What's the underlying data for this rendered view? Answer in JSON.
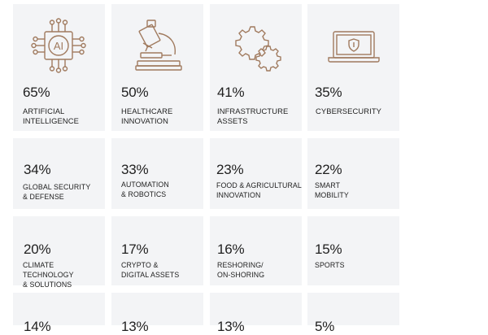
{
  "icon_color": "#a07a5e",
  "cards": [
    {
      "value": "65%",
      "label": "ARTIFICIAL\nINTELLIGENCE",
      "icon": "ai-chip-icon"
    },
    {
      "value": "50%",
      "label": "HEALTHCARE\nINNOVATION",
      "icon": "microscope-icon"
    },
    {
      "value": "41%",
      "label": "INFRASTRUCTURE\nASSETS",
      "icon": "gears-icon"
    },
    {
      "value": "35%",
      "label": "CYBERSECURITY",
      "icon": "laptop-shield-icon"
    },
    {
      "value": "34%",
      "label": "GLOBAL SECURITY\n& DEFENSE"
    },
    {
      "value": "33%",
      "label": "AUTOMATION\n& ROBOTICS"
    },
    {
      "value": "23%",
      "label": "FOOD & AGRICULTURAL\nINNOVATION"
    },
    {
      "value": "22%",
      "label": "SMART\nMOBILITY"
    },
    {
      "value": "20%",
      "label": "CLIMATE TECHNOLOGY\n& SOLUTIONS"
    },
    {
      "value": "17%",
      "label": "CRYPTO &\nDIGITAL ASSETS"
    },
    {
      "value": "16%",
      "label": "RESHORING/\nON-SHORING"
    },
    {
      "value": "15%",
      "label": "SPORTS"
    },
    {
      "value": "14%",
      "label": ""
    },
    {
      "value": "13%",
      "label": ""
    },
    {
      "value": "13%",
      "label": ""
    },
    {
      "value": "5%",
      "label": ""
    }
  ]
}
